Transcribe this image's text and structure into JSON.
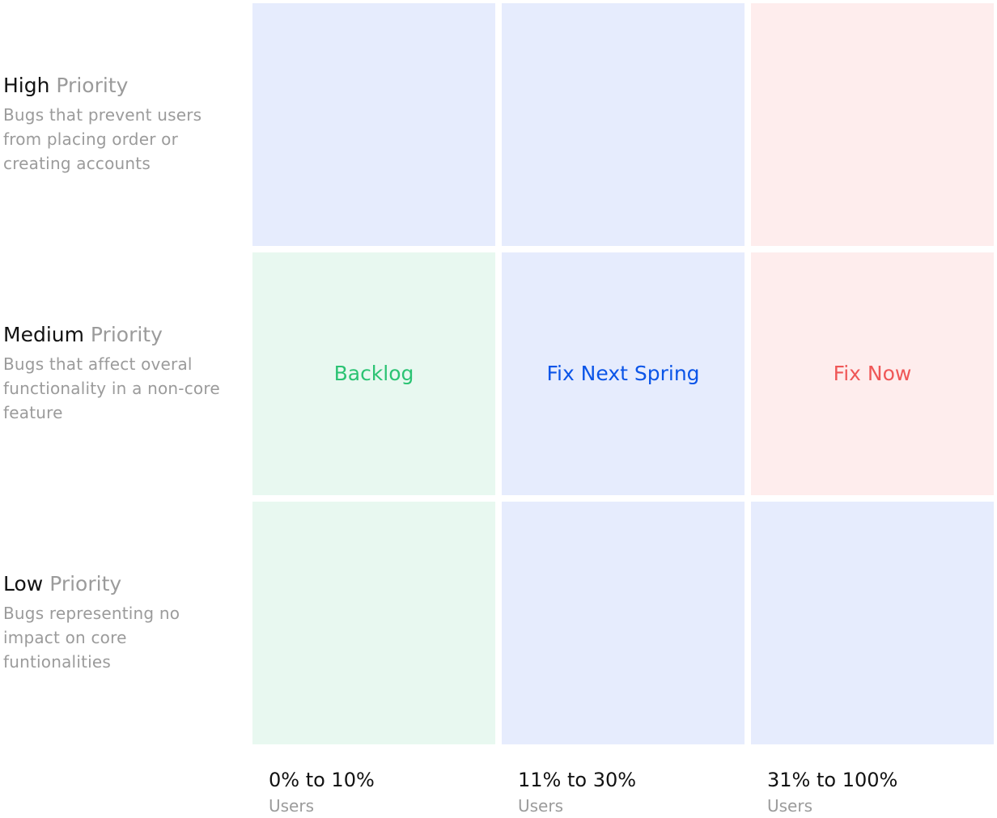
{
  "colors": {
    "blue_bg": "#e6ecfd",
    "red_bg": "#feeded",
    "green_bg": "#e8f8f0",
    "green_text": "#2bc373",
    "blue_text": "#0b55e8",
    "red_text": "#ef5757"
  },
  "rows": [
    {
      "level": "High",
      "word": "Priority",
      "description": "Bugs that prevent users from placing order or creating accounts"
    },
    {
      "level": "Medium",
      "word": "Priority",
      "description": "Bugs that affect overal functionality in a non-core feature"
    },
    {
      "level": "Low",
      "word": "Priority",
      "description": "Bugs representing no impact on core funtionalities"
    }
  ],
  "columns": [
    {
      "range": "0% to 10%",
      "unit": "Users"
    },
    {
      "range": "11% to 30%",
      "unit": "Users"
    },
    {
      "range": "31% to 100%",
      "unit": "Users"
    }
  ],
  "cells": [
    [
      {
        "label": "",
        "color": "blue"
      },
      {
        "label": "",
        "color": "blue"
      },
      {
        "label": "",
        "color": "red"
      }
    ],
    [
      {
        "label": "Backlog",
        "color": "green"
      },
      {
        "label": "Fix Next Spring",
        "color": "blue"
      },
      {
        "label": "Fix Now",
        "color": "red"
      }
    ],
    [
      {
        "label": "",
        "color": "green"
      },
      {
        "label": "",
        "color": "blue"
      },
      {
        "label": "",
        "color": "blue"
      }
    ]
  ]
}
